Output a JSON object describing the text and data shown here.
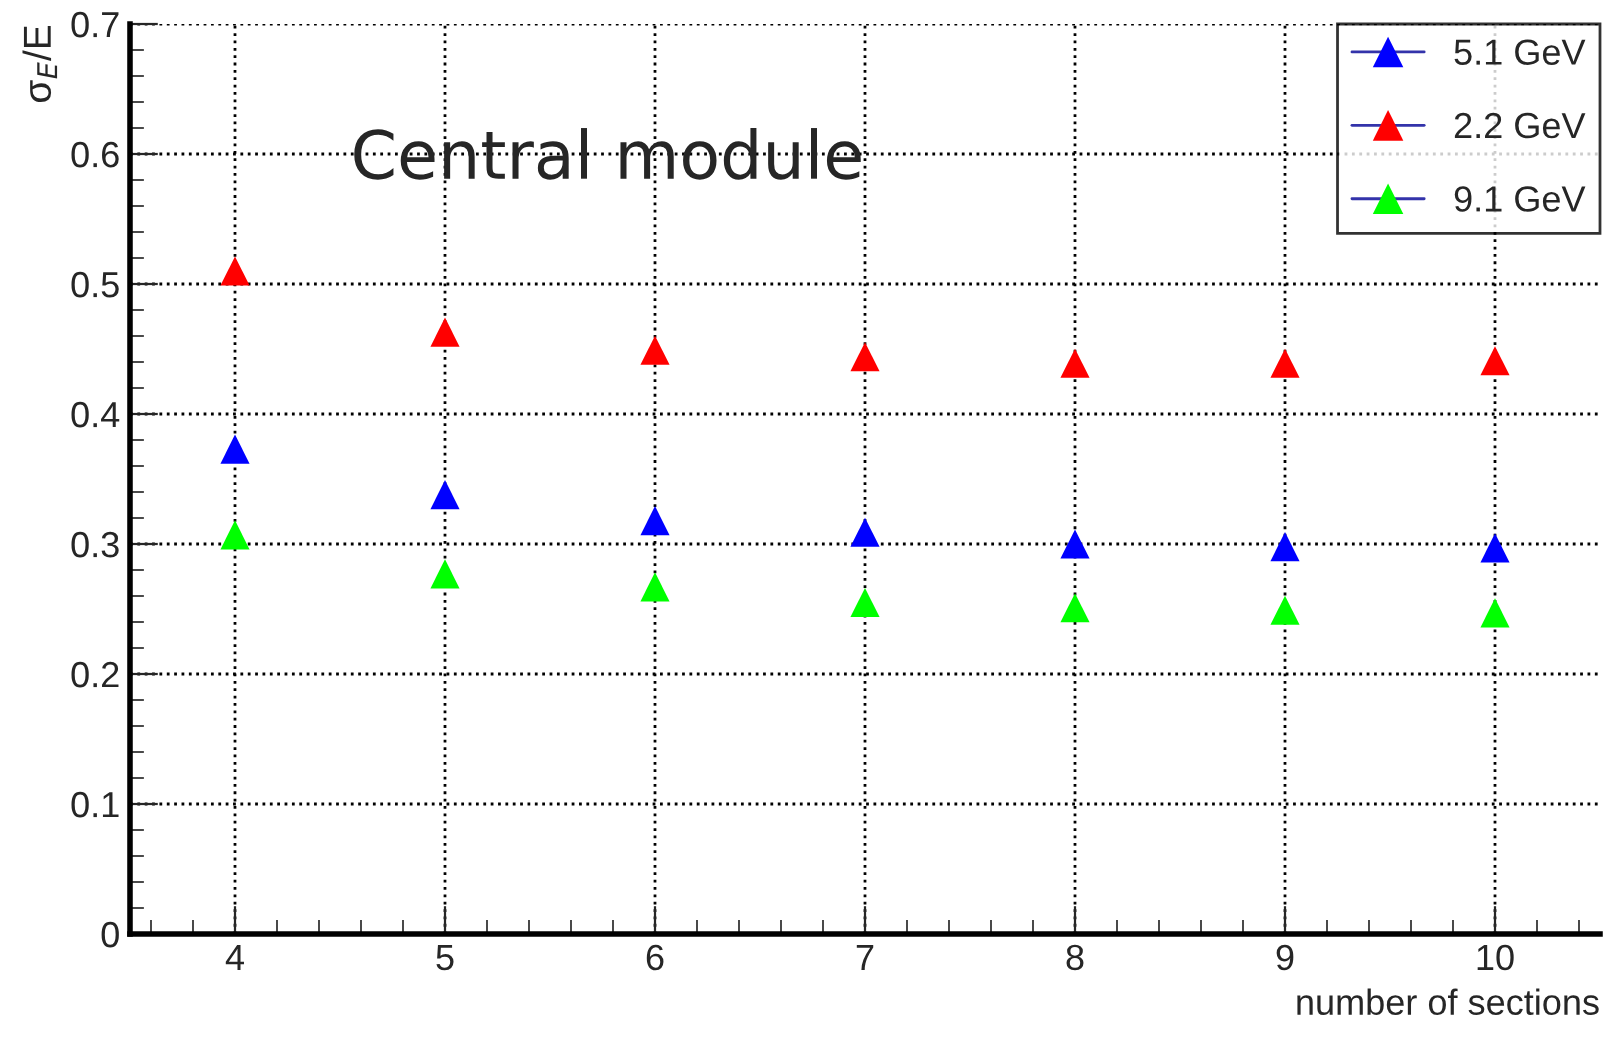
{
  "chart_data": {
    "type": "scatter",
    "xlabel": "number of sections",
    "ylabel": "σ$_{E}$/E",
    "x": [
      4,
      5,
      6,
      7,
      8,
      9,
      10
    ],
    "series": [
      {
        "name": "5.1 GeV",
        "color": "#0000ff",
        "values": [
          0.373,
          0.338,
          0.318,
          0.309,
          0.3,
          0.298,
          0.297
        ]
      },
      {
        "name": "2.2 GeV",
        "color": "#ff0000",
        "values": [
          0.51,
          0.463,
          0.449,
          0.444,
          0.439,
          0.439,
          0.441
        ]
      },
      {
        "name": "9.1 GeV",
        "color": "#00ff00",
        "values": [
          0.307,
          0.277,
          0.267,
          0.255,
          0.251,
          0.249,
          0.247
        ]
      }
    ],
    "xlim": [
      3.5,
      10.5
    ],
    "ylim": [
      0,
      0.7
    ],
    "xticks": [
      4,
      5,
      6,
      7,
      8,
      9,
      10
    ],
    "yticks": [
      0,
      0.1,
      0.2,
      0.3,
      0.4,
      0.5,
      0.6,
      0.7
    ],
    "grid": true,
    "legend": "top right",
    "marker": "triangle",
    "annotations": [
      "Central module"
    ]
  }
}
